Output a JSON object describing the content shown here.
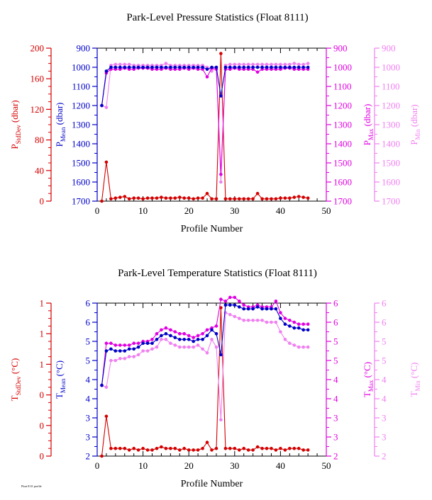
{
  "footer": "Float 8111 profile",
  "colors": {
    "stddev": "#d40000",
    "mean": "#0000c8",
    "max": "#e000e0",
    "min": "#f080f0"
  },
  "chart_data": [
    {
      "type": "line",
      "title": "Park-Level Pressure Statistics (Float 8111)",
      "xlabel": "Profile Number",
      "xlim": [
        0,
        50
      ],
      "xticks": [
        "0",
        "10",
        "20",
        "30",
        "40",
        "50"
      ],
      "axes": {
        "stddev": {
          "label_main": "P",
          "label_sub": "StdDev",
          "label_unit": " (dbar)",
          "lim": [
            0,
            200
          ],
          "ticks": [
            "0",
            "40",
            "80",
            "120",
            "160",
            "200"
          ]
        },
        "mean": {
          "label_main": "P",
          "label_sub": "Mean",
          "label_unit": " (dbar)",
          "lim": [
            1700,
            900
          ],
          "ticks": [
            "1700",
            "1600",
            "1500",
            "1400",
            "1300",
            "1200",
            "1100",
            "1000",
            "900"
          ]
        },
        "max": {
          "label_main": "P",
          "label_sub": "Max",
          "label_unit": " (dbar)",
          "lim": [
            1700,
            900
          ],
          "ticks": [
            "1700",
            "1600",
            "1500",
            "1400",
            "1300",
            "1200",
            "1100",
            "1000",
            "900"
          ]
        },
        "min": {
          "label_main": "P",
          "label_sub": "Min",
          "label_unit": " (dbar)",
          "lim": [
            1700,
            900
          ],
          "ticks": [
            "1700",
            "1600",
            "1500",
            "1400",
            "1300",
            "1200",
            "1100",
            "1000",
            "900"
          ]
        }
      },
      "x": [
        1,
        2,
        3,
        4,
        5,
        6,
        7,
        8,
        9,
        10,
        11,
        12,
        13,
        14,
        15,
        16,
        17,
        18,
        19,
        20,
        21,
        22,
        23,
        24,
        25,
        26,
        27,
        28,
        29,
        30,
        31,
        32,
        33,
        34,
        35,
        36,
        37,
        38,
        39,
        40,
        41,
        42,
        43,
        44,
        45,
        46
      ],
      "series": [
        {
          "key": "stddev",
          "axis": "stddev",
          "values": [
            0,
            51,
            3,
            4,
            5,
            6,
            3,
            4,
            4,
            3,
            4,
            4,
            4,
            5,
            4,
            4,
            4,
            5,
            4,
            4,
            3,
            4,
            4,
            10,
            3,
            3,
            193,
            3,
            3,
            3,
            3,
            3,
            3,
            3,
            10,
            3,
            3,
            3,
            3,
            4,
            4,
            4,
            5,
            6,
            5,
            4
          ]
        },
        {
          "key": "min",
          "axis": "min",
          "values": [
            1200,
            1210,
            990,
            985,
            985,
            985,
            985,
            990,
            990,
            990,
            990,
            990,
            990,
            990,
            980,
            990,
            990,
            990,
            990,
            990,
            990,
            990,
            990,
            1000,
            1020,
            1000,
            1600,
            990,
            985,
            985,
            985,
            985,
            985,
            985,
            985,
            985,
            985,
            985,
            985,
            985,
            985,
            985,
            980,
            985,
            985,
            980
          ]
        },
        {
          "key": "max",
          "axis": "max",
          "values": [
            1200,
            1030,
            1010,
            1010,
            1010,
            1005,
            1010,
            1010,
            1005,
            1005,
            1005,
            1010,
            1010,
            1010,
            1005,
            1010,
            1010,
            1010,
            1005,
            1010,
            1005,
            1010,
            1010,
            1050,
            1005,
            1010,
            1560,
            1010,
            1010,
            1005,
            1010,
            1010,
            1010,
            1010,
            1025,
            1010,
            1010,
            1010,
            1010,
            1010,
            1005,
            1005,
            1010,
            1010,
            1010,
            1010
          ]
        },
        {
          "key": "mean",
          "axis": "mean",
          "values": [
            1200,
            1020,
            1000,
            1000,
            1000,
            1000,
            1000,
            1000,
            1000,
            1000,
            1000,
            1000,
            1000,
            1000,
            1000,
            1000,
            1000,
            1000,
            1000,
            1000,
            1000,
            1000,
            1000,
            1010,
            1000,
            1000,
            1150,
            1000,
            1000,
            1000,
            1000,
            1000,
            1000,
            1000,
            1000,
            1000,
            1000,
            1000,
            1000,
            1000,
            1000,
            1000,
            1000,
            1000,
            1000,
            1000
          ]
        }
      ]
    },
    {
      "type": "line",
      "title": "Park-Level Temperature Statistics (Float 8111)",
      "xlabel": "Profile Number",
      "xlim": [
        0,
        50
      ],
      "xticks": [
        "0",
        "10",
        "20",
        "30",
        "40",
        "50"
      ],
      "axes": {
        "stddev": {
          "label_main": "T",
          "label_sub": "StdDev",
          "label_unit": " (°C)",
          "lim": [
            0,
            1
          ],
          "ticks": [
            "0",
            "0",
            "0",
            "1",
            "1",
            "1"
          ]
        },
        "mean": {
          "label_main": "T",
          "label_sub": "Mean",
          "label_unit": " (°C)",
          "lim": [
            2,
            6
          ],
          "ticks": [
            "2",
            "3",
            "3",
            "4",
            "4",
            "5",
            "5",
            "6",
            "6"
          ]
        },
        "max": {
          "label_main": "T",
          "label_sub": "Max",
          "label_unit": " (°C)",
          "lim": [
            2,
            6
          ],
          "ticks": [
            "2",
            "3",
            "3",
            "4",
            "4",
            "5",
            "5",
            "6",
            "6"
          ]
        },
        "min": {
          "label_main": "T",
          "label_sub": "Min",
          "label_unit": " (°C)",
          "lim": [
            2,
            6
          ],
          "ticks": [
            "2",
            "3",
            "3",
            "4",
            "4",
            "5",
            "5",
            "6",
            "6"
          ]
        }
      },
      "x": [
        1,
        2,
        3,
        4,
        5,
        6,
        7,
        8,
        9,
        10,
        11,
        12,
        13,
        14,
        15,
        16,
        17,
        18,
        19,
        20,
        21,
        22,
        23,
        24,
        25,
        26,
        27,
        28,
        29,
        30,
        31,
        32,
        33,
        34,
        35,
        36,
        37,
        38,
        39,
        40,
        41,
        42,
        43,
        44,
        45,
        46
      ],
      "series": [
        {
          "key": "stddev",
          "axis": "stddev",
          "values": [
            0,
            0.26,
            0.05,
            0.05,
            0.05,
            0.05,
            0.04,
            0.05,
            0.04,
            0.05,
            0.04,
            0.04,
            0.05,
            0.06,
            0.05,
            0.05,
            0.05,
            0.04,
            0.05,
            0.04,
            0.04,
            0.04,
            0.05,
            0.09,
            0.04,
            0.05,
            0.97,
            0.05,
            0.05,
            0.05,
            0.04,
            0.05,
            0.04,
            0.04,
            0.06,
            0.05,
            0.05,
            0.05,
            0.04,
            0.05,
            0.04,
            0.05,
            0.05,
            0.05,
            0.04,
            0.04
          ]
        },
        {
          "key": "min",
          "axis": "min",
          "values": [
            3.85,
            3.8,
            4.5,
            4.5,
            4.55,
            4.55,
            4.6,
            4.6,
            4.65,
            4.75,
            4.75,
            4.8,
            4.85,
            5.05,
            5.05,
            4.95,
            4.9,
            4.85,
            4.85,
            4.85,
            4.85,
            4.9,
            4.8,
            4.7,
            5.05,
            4.85,
            2.95,
            5.75,
            5.7,
            5.65,
            5.6,
            5.55,
            5.55,
            5.55,
            5.55,
            5.55,
            5.5,
            5.5,
            5.5,
            5.25,
            5.05,
            4.95,
            4.9,
            4.85,
            4.85,
            4.85
          ]
        },
        {
          "key": "max",
          "axis": "max",
          "values": [
            3.85,
            4.95,
            4.95,
            4.9,
            4.9,
            4.9,
            4.9,
            4.95,
            4.95,
            5.0,
            5.0,
            5.05,
            5.2,
            5.3,
            5.35,
            5.3,
            5.25,
            5.2,
            5.2,
            5.15,
            5.1,
            5.15,
            5.2,
            5.3,
            5.35,
            5.4,
            6.1,
            6.05,
            6.15,
            6.15,
            6.05,
            5.95,
            5.9,
            5.9,
            5.95,
            5.9,
            5.9,
            5.9,
            6.05,
            5.75,
            5.6,
            5.55,
            5.5,
            5.45,
            5.45,
            5.45
          ]
        },
        {
          "key": "mean",
          "axis": "mean",
          "values": [
            3.85,
            4.75,
            4.8,
            4.75,
            4.75,
            4.75,
            4.8,
            4.8,
            4.85,
            4.95,
            4.95,
            4.95,
            5.05,
            5.15,
            5.2,
            5.15,
            5.1,
            5.05,
            5.05,
            5.05,
            5.0,
            5.05,
            5.05,
            5.15,
            5.3,
            5.2,
            4.65,
            5.95,
            5.95,
            5.95,
            5.9,
            5.85,
            5.85,
            5.85,
            5.9,
            5.85,
            5.85,
            5.85,
            5.85,
            5.6,
            5.45,
            5.4,
            5.35,
            5.35,
            5.3,
            5.3
          ]
        }
      ]
    }
  ]
}
